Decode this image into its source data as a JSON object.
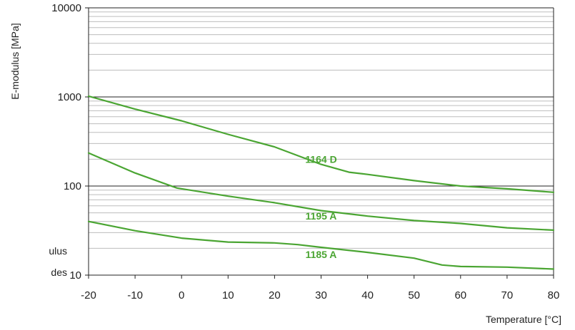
{
  "chart_data": {
    "type": "line",
    "ylabel": "E-modulus [MPa]",
    "xlabel": "Temperature [°C]",
    "yscale": "log",
    "xlim": [
      -20,
      80
    ],
    "ylim": [
      10,
      10000
    ],
    "x_ticks": [
      -20,
      -10,
      0,
      10,
      20,
      30,
      40,
      50,
      60,
      70,
      80
    ],
    "y_ticks": [
      10,
      100,
      1000,
      10000
    ],
    "grid": true,
    "line_color": "#4aa532",
    "series": [
      {
        "name": "1164 D",
        "x": [
          -20,
          -10,
          0,
          10,
          20,
          30,
          36,
          40,
          50,
          60,
          70,
          80
        ],
        "y": [
          1020,
          730,
          540,
          380,
          275,
          175,
          143,
          135,
          115,
          100,
          93,
          85
        ]
      },
      {
        "name": "1195 A",
        "x": [
          -20,
          -10,
          -1,
          10,
          20,
          30,
          40,
          50,
          60,
          70,
          80
        ],
        "y": [
          235,
          140,
          95,
          77,
          65,
          53,
          46,
          41,
          38,
          34,
          32
        ]
      },
      {
        "name": "1185 A",
        "x": [
          -20,
          -10,
          0,
          10,
          20,
          25,
          30,
          40,
          50,
          56,
          60,
          70,
          80
        ],
        "y": [
          40,
          31.5,
          26,
          23.5,
          23,
          22,
          20.5,
          18,
          15.5,
          13,
          12.5,
          12.3,
          11.7
        ]
      }
    ],
    "side_text": [
      "ulus",
      "des"
    ]
  }
}
